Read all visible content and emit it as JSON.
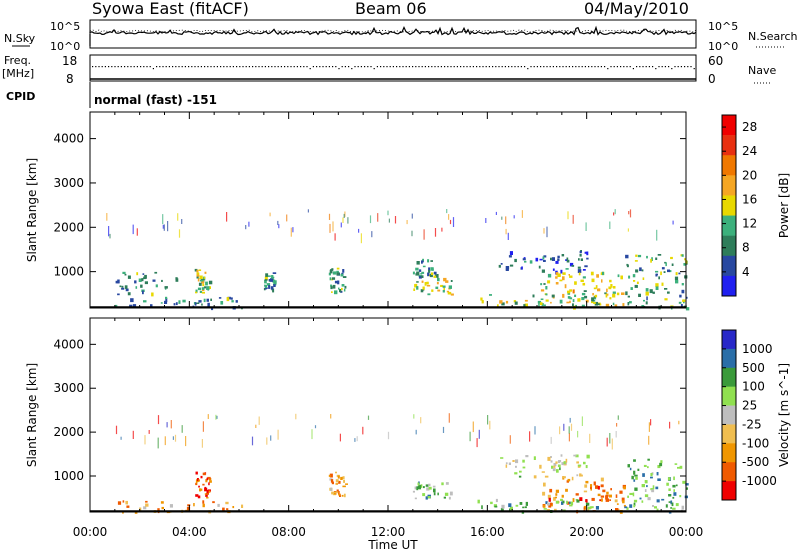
{
  "header": {
    "station": "Syowa East (fitACF)",
    "beam": "Beam 06",
    "date": "04/May/2010"
  },
  "strips": {
    "nsky_label": "N.Sky",
    "nsearch_label": "N.Search",
    "noise_ticks": [
      "10^5",
      "10^0"
    ],
    "freq_label_1": "Freq.",
    "freq_label_2": "[MHz]",
    "freq_ticks": [
      "18",
      "8"
    ],
    "nave_label": "Nave",
    "nave_ticks": [
      "60",
      "0"
    ],
    "cpid_label": "CPID",
    "cpid_text": "normal (fast) -151"
  },
  "colors": {
    "power_scale": [
      "#2020f0",
      "#2848a0",
      "#2e7d5a",
      "#3cb07c",
      "#e8d800",
      "#f5a623",
      "#f07800",
      "#e83010",
      "#f00000"
    ],
    "velocity_scale": [
      "#f00000",
      "#f05a00",
      "#f09600",
      "#f0be50",
      "#bebebe",
      "#90e050",
      "#3a9a3a",
      "#2a6ea8",
      "#2828c8"
    ]
  },
  "chart_data": [
    {
      "type": "heatmap",
      "name": "power",
      "x_range": [
        "00:00",
        "24:00"
      ],
      "ylim": [
        180,
        4600
      ],
      "ylabel": "Slant Range [km]",
      "yticks": [
        1000,
        2000,
        3000,
        4000
      ],
      "colorbar": {
        "label": "Power [dB]",
        "ticks": [
          4,
          8,
          12,
          16,
          20,
          24,
          28
        ],
        "range": [
          0,
          30
        ]
      },
      "scatter_regions": [
        {
          "t0": 0.9,
          "t1": 6.2,
          "r0": 200,
          "r1": 450,
          "level": 0.3
        },
        {
          "t0": 4.2,
          "t1": 4.8,
          "r0": 500,
          "r1": 1100,
          "level": 0.45
        },
        {
          "t0": 1.0,
          "t1": 3.5,
          "r0": 500,
          "r1": 1000,
          "level": 0.3
        },
        {
          "t0": 7.0,
          "t1": 7.4,
          "r0": 600,
          "r1": 1000,
          "level": 0.3
        },
        {
          "t0": 9.6,
          "t1": 10.3,
          "r0": 550,
          "r1": 1100,
          "level": 0.35
        },
        {
          "t0": 13.0,
          "t1": 14.6,
          "r0": 500,
          "r1": 900,
          "level": 0.45
        },
        {
          "t0": 13.0,
          "t1": 14.0,
          "r0": 900,
          "r1": 1300,
          "level": 0.3
        },
        {
          "t0": 16.3,
          "t1": 20.0,
          "r0": 1000,
          "r1": 1500,
          "level": 0.2
        },
        {
          "t0": 18.0,
          "t1": 21.5,
          "r0": 200,
          "r1": 1000,
          "level": 0.5
        },
        {
          "t0": 21.5,
          "t1": 24.0,
          "r0": 200,
          "r1": 1400,
          "level": 0.35
        },
        {
          "t0": 15.5,
          "t1": 20.5,
          "r0": 200,
          "r1": 500,
          "level": 0.45
        }
      ],
      "echo_ticks": {
        "t0": 0.5,
        "t1": 24.0,
        "r0": 1700,
        "r1": 2300
      }
    },
    {
      "type": "heatmap",
      "name": "velocity",
      "x_range": [
        "00:00",
        "24:00"
      ],
      "ylim": [
        180,
        4600
      ],
      "ylabel": "Slant Range [km]",
      "xlabel": "Time UT",
      "xticks": [
        "00:00",
        "04:00",
        "08:00",
        "12:00",
        "16:00",
        "20:00",
        "00:00"
      ],
      "yticks": [
        1000,
        2000,
        3000,
        4000
      ],
      "colorbar": {
        "label": "Velocity [m s^-1]",
        "ticks": [
          1000,
          500,
          100,
          25,
          -25,
          -100,
          -500,
          -1000
        ]
      },
      "scatter_regions": [
        {
          "t0": 0.9,
          "t1": 6.2,
          "r0": 200,
          "r1": 450,
          "level": 0.3
        },
        {
          "t0": 4.2,
          "t1": 4.8,
          "r0": 500,
          "r1": 1100,
          "level": 0.15
        },
        {
          "t0": 9.6,
          "t1": 10.3,
          "r0": 550,
          "r1": 1100,
          "level": 0.3
        },
        {
          "t0": 13.0,
          "t1": 14.6,
          "r0": 500,
          "r1": 900,
          "level": 0.65
        },
        {
          "t0": 16.3,
          "t1": 20.0,
          "r0": 1000,
          "r1": 1500,
          "level": 0.5
        },
        {
          "t0": 18.0,
          "t1": 21.5,
          "r0": 200,
          "r1": 1000,
          "level": 0.25
        },
        {
          "t0": 21.5,
          "t1": 24.0,
          "r0": 200,
          "r1": 1400,
          "level": 0.7
        },
        {
          "t0": 15.5,
          "t1": 20.5,
          "r0": 200,
          "r1": 500,
          "level": 0.65
        }
      ],
      "echo_ticks": {
        "t0": 0.5,
        "t1": 24.0,
        "r0": 1700,
        "r1": 2300
      }
    }
  ]
}
